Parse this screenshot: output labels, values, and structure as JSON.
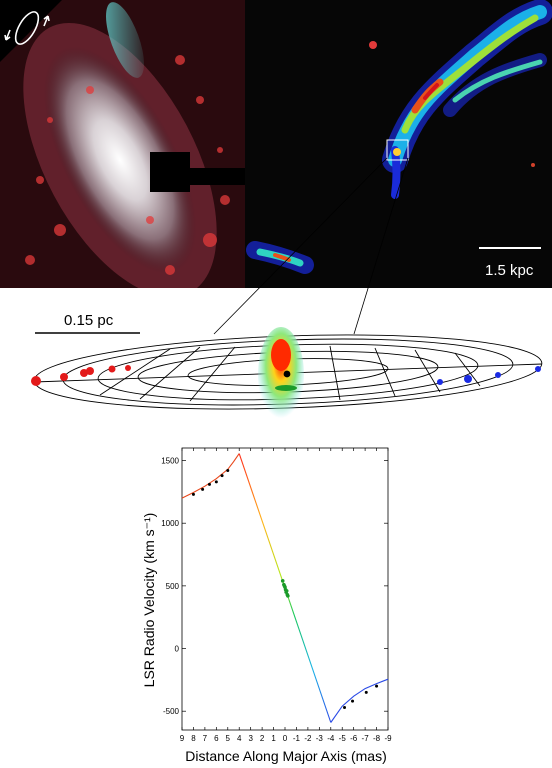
{
  "scale_bars": {
    "kpc": "1.5 kpc",
    "pc": "0.15 pc"
  },
  "chart_data": {
    "type": "line",
    "xlabel": "Distance Along Major Axis (mas)",
    "ylabel": "LSR Radio Velocity (km s⁻¹)",
    "xlim": [
      9,
      -9
    ],
    "ylim": [
      -650,
      1600
    ],
    "x_ticks": [
      9,
      8,
      7,
      6,
      5,
      4,
      3,
      2,
      1,
      0,
      -1,
      -2,
      -3,
      -4,
      -5,
      -6,
      -7,
      -8,
      -9
    ],
    "y_ticks": [
      1500,
      1000,
      500,
      0,
      -500
    ],
    "series": [
      {
        "kind": "keplerian-red",
        "x": [
          9,
          8,
          7,
          6,
          5,
          4.5,
          4
        ],
        "y": [
          1200,
          1245,
          1295,
          1355,
          1430,
          1490,
          1555
        ]
      },
      {
        "kind": "linear-systemic",
        "x": [
          4,
          -4
        ],
        "y": [
          1555,
          -590
        ]
      },
      {
        "kind": "keplerian-blue",
        "x": [
          -4,
          -5,
          -6,
          -7,
          -8,
          -9
        ],
        "y": [
          -590,
          -460,
          -380,
          -320,
          -280,
          -245
        ]
      }
    ],
    "points": {
      "red": [
        [
          8.0,
          1230
        ],
        [
          7.2,
          1270
        ],
        [
          6.6,
          1310
        ],
        [
          6.0,
          1330
        ],
        [
          5.5,
          1380
        ],
        [
          5.0,
          1420
        ]
      ],
      "systemic": [
        [
          0.2,
          540
        ],
        [
          0.1,
          510
        ],
        [
          0.0,
          490
        ],
        [
          -0.05,
          470
        ],
        [
          -0.1,
          450
        ],
        [
          -0.2,
          430
        ],
        [
          -0.15,
          460
        ],
        [
          0.05,
          500
        ],
        [
          -0.25,
          420
        ]
      ],
      "blue": [
        [
          -5.2,
          -470
        ],
        [
          -5.9,
          -420
        ],
        [
          -7.1,
          -350
        ],
        [
          -8.0,
          -300
        ]
      ]
    }
  }
}
